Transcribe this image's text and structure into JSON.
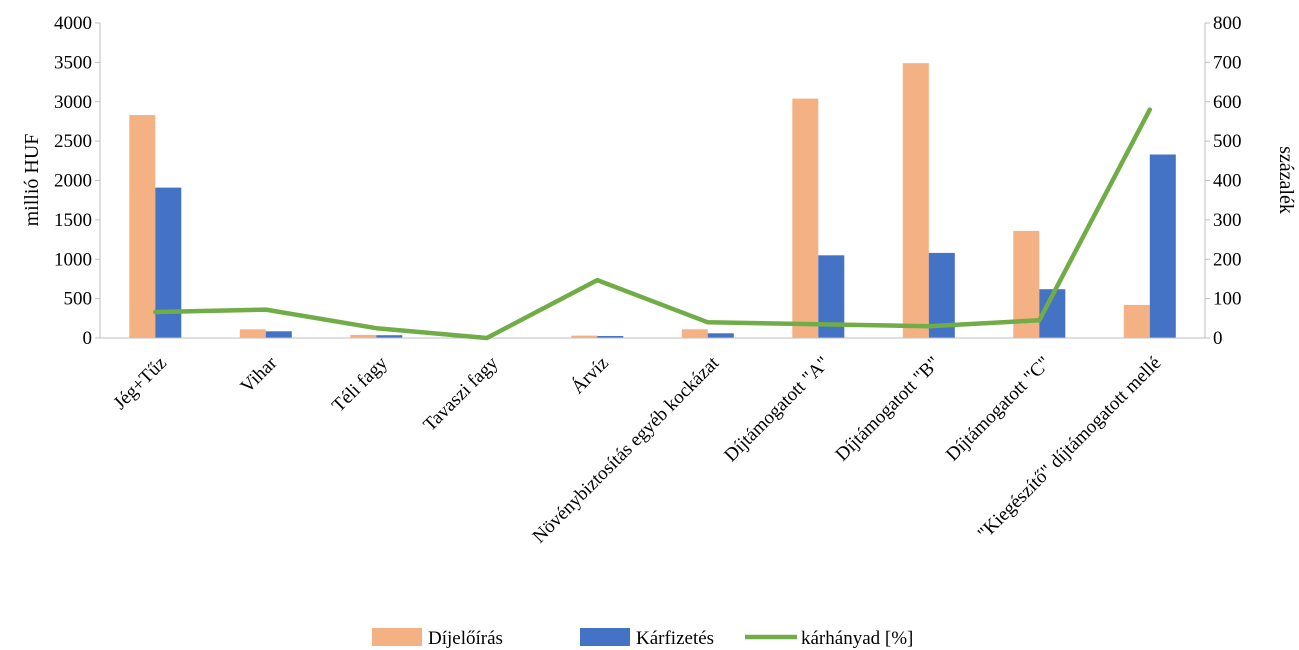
{
  "chart_data": {
    "type": "bar",
    "categories": [
      "Jég+Tűz",
      "Vihar",
      "Téli fagy",
      "Tavaszi fagy",
      "Árvíz",
      "Növénybiztosítás egyéb kockázat",
      "Díjtámogatott \"A\"",
      "Díjtámogatott \"B\"",
      "Díjtámogatott \"C\"",
      "\"Kiegészítő\" díjtámogatott mellé"
    ],
    "series": [
      {
        "name": "Díjelőírás",
        "type": "bar",
        "axis": "left",
        "color": "#F4B183",
        "values": [
          2830,
          110,
          40,
          5,
          30,
          110,
          3040,
          3490,
          1360,
          420
        ]
      },
      {
        "name": "Kárfizetés",
        "type": "bar",
        "axis": "left",
        "color": "#4472C4",
        "values": [
          1910,
          85,
          35,
          0,
          25,
          60,
          1050,
          1080,
          620,
          2330
        ]
      },
      {
        "name": "kárhányad [%]",
        "type": "line",
        "axis": "right",
        "color": "#70AD47",
        "values": [
          66,
          72,
          25,
          0,
          147,
          40,
          35,
          30,
          45,
          580
        ]
      }
    ],
    "ylabel": "millió HUF",
    "y2label": "százalék",
    "ylim": [
      0,
      4000
    ],
    "y2lim": [
      0,
      800
    ],
    "yticks": [
      0,
      500,
      1000,
      1500,
      2000,
      2500,
      3000,
      3500,
      4000
    ],
    "y2ticks": [
      0,
      100,
      200,
      300,
      400,
      500,
      600,
      700,
      800
    ],
    "grid": false,
    "legend_position": "bottom"
  }
}
